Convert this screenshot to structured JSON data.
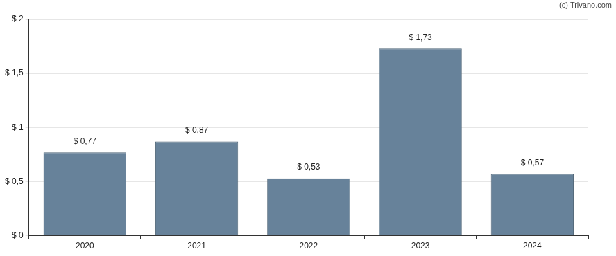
{
  "chart_data": {
    "type": "bar",
    "categories": [
      "2020",
      "2021",
      "2022",
      "2023",
      "2024"
    ],
    "values": [
      0.77,
      0.87,
      0.53,
      1.73,
      0.57
    ],
    "value_labels": [
      "$ 0,77",
      "$ 0,87",
      "$ 0,53",
      "$ 1,73",
      "$ 0,57"
    ],
    "color": "#67829a",
    "ylim": [
      0,
      2
    ],
    "yticks": [
      {
        "value": 0,
        "label": "$ 0"
      },
      {
        "value": 0.5,
        "label": "$ 0,5"
      },
      {
        "value": 1,
        "label": "$ 1"
      },
      {
        "value": 1.5,
        "label": "$ 1,5"
      },
      {
        "value": 2,
        "label": "$ 2"
      }
    ],
    "grid": true,
    "data_labels": true,
    "annotations": [
      "(c) Trivano.com"
    ]
  }
}
